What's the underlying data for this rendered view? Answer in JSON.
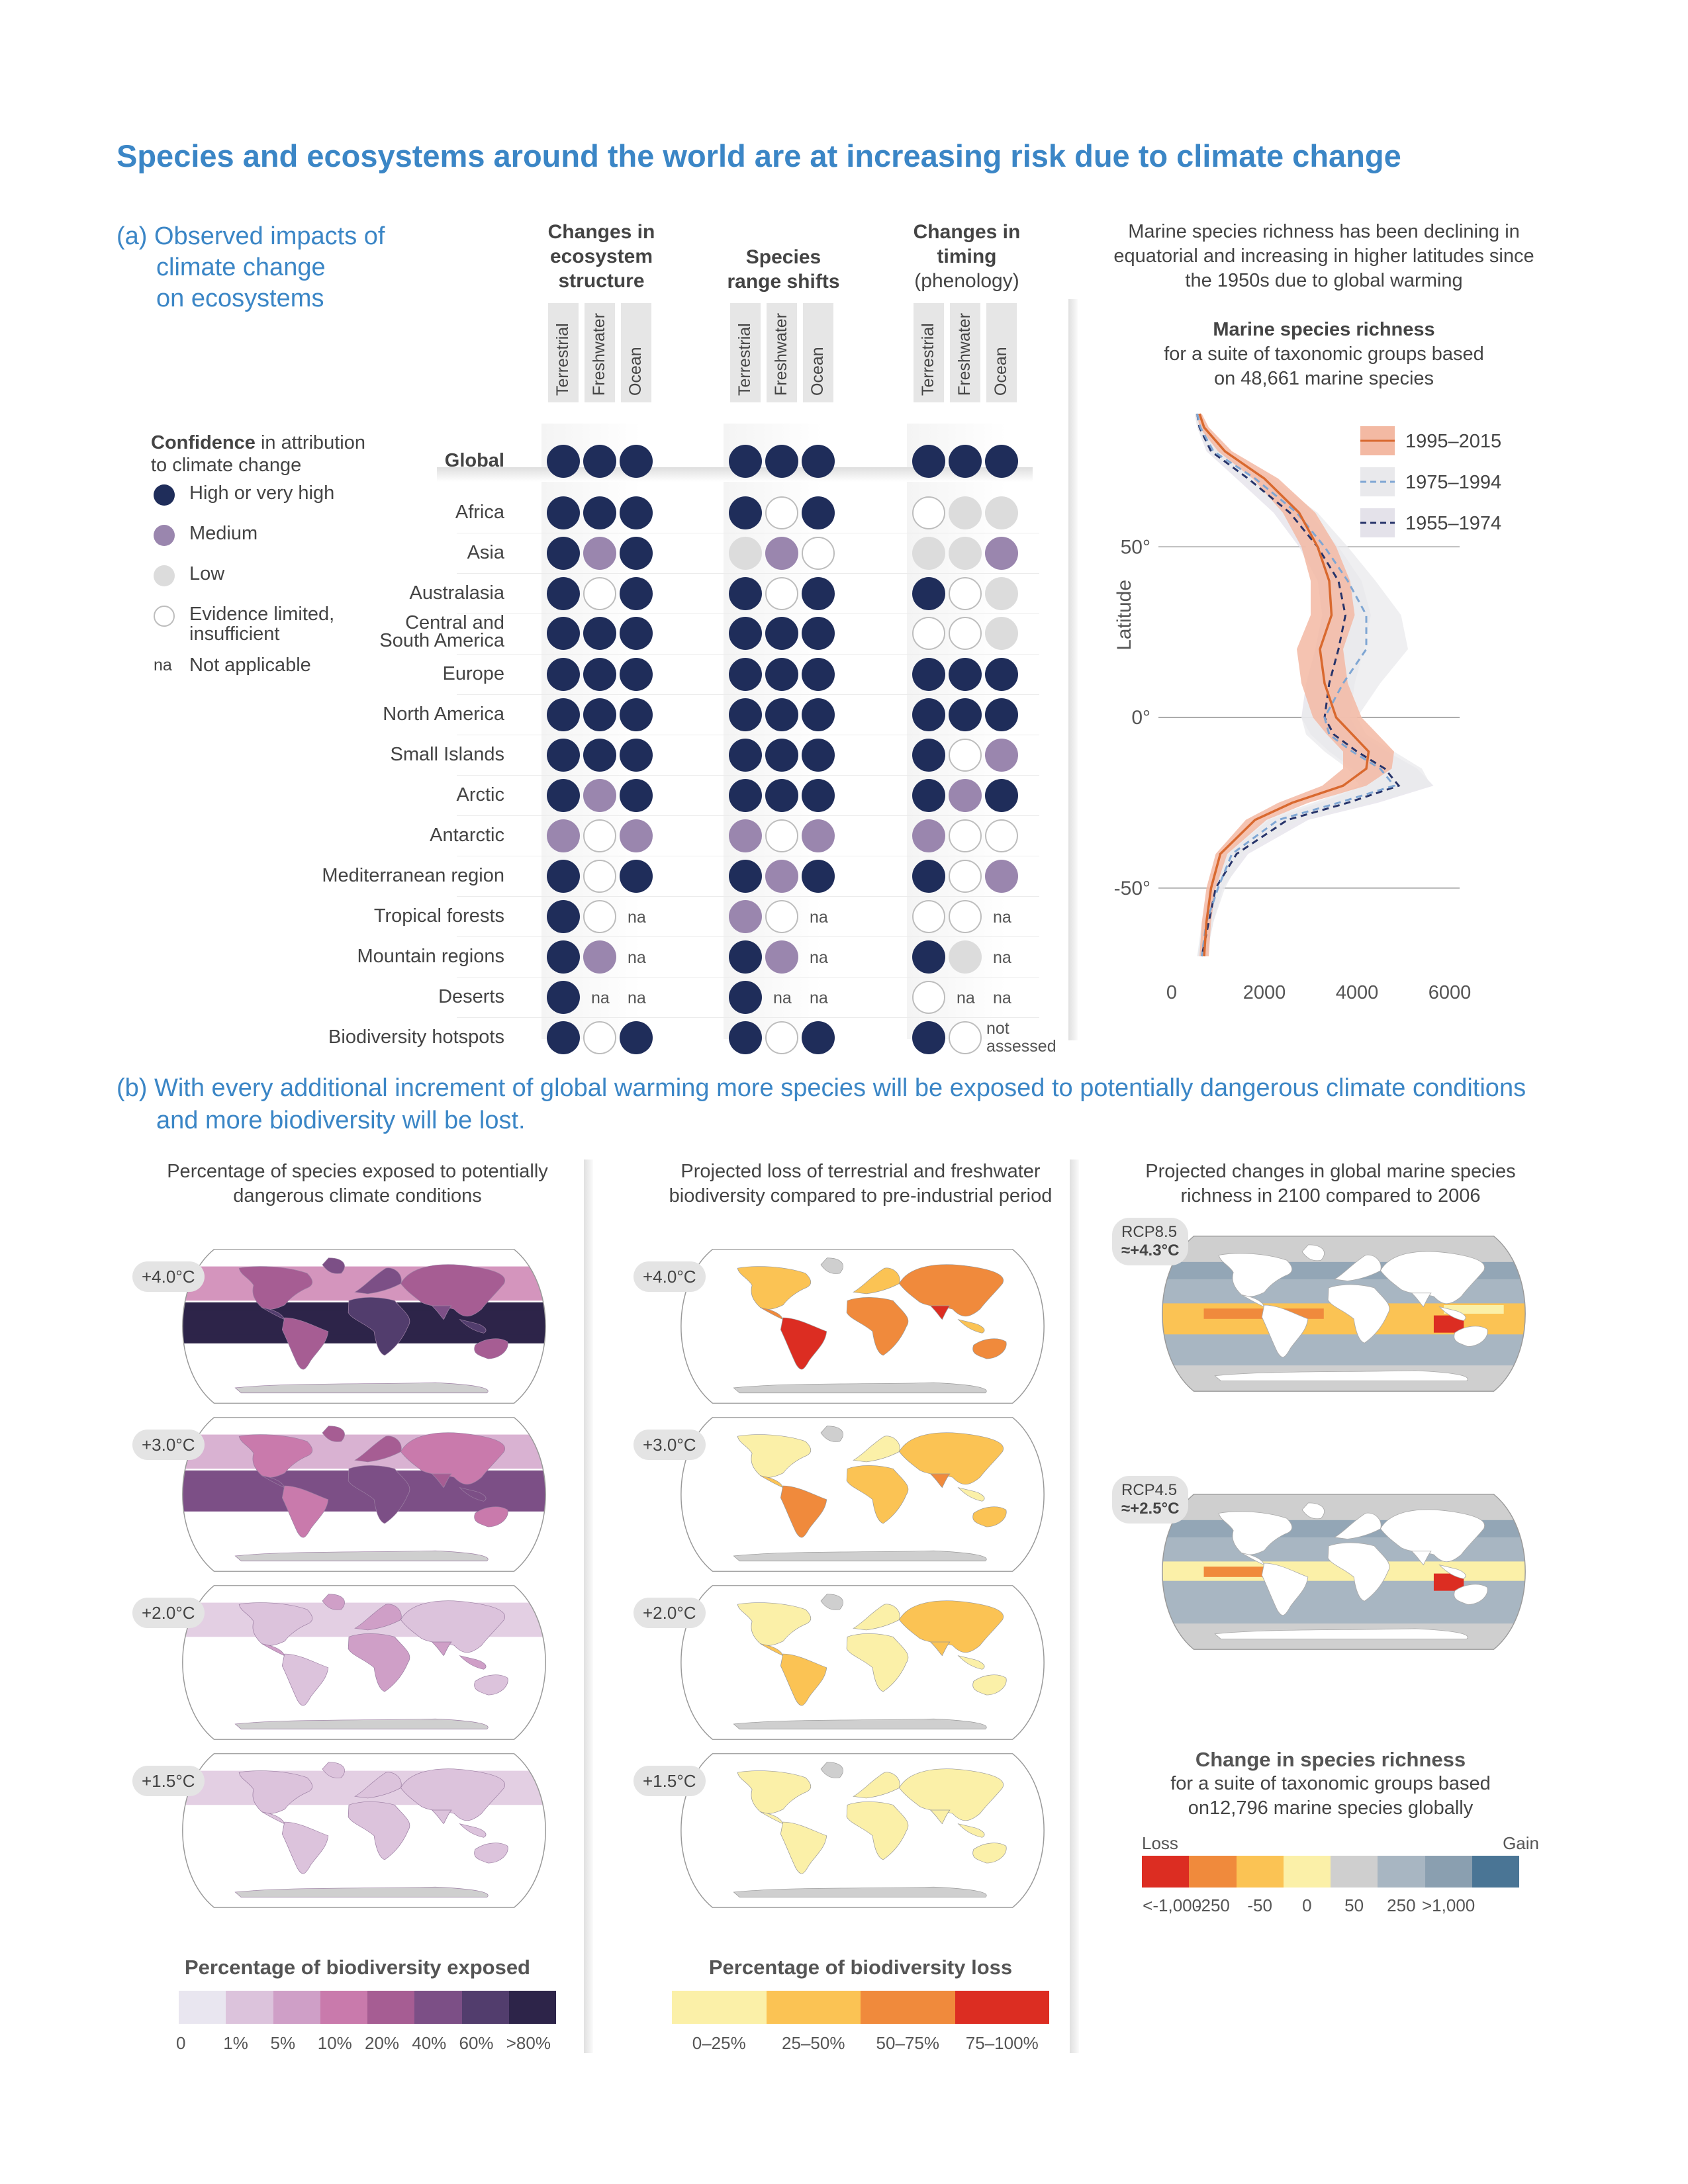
{
  "title": "Species and ecosystems around the world are at increasing risk due to climate change",
  "section_a": [
    "(a) Observed impacts of",
    "climate change",
    "on ecosystems"
  ],
  "section_b": [
    "(b) With every additional increment of global warming more species will be exposed to potentially dangerous climate conditions",
    "and more biodiversity will be lost."
  ],
  "matrix": {
    "groups": [
      {
        "lines": [
          "Changes in",
          "ecosystem",
          "structure"
        ],
        "bold": [
          true,
          true,
          true
        ]
      },
      {
        "lines": [
          "Species",
          "range shifts"
        ],
        "bold": [
          true,
          true
        ]
      },
      {
        "lines": [
          "Changes in",
          "timing",
          "(phenology)"
        ],
        "bold": [
          true,
          true,
          false
        ]
      }
    ],
    "sub_columns": [
      "Terrestrial",
      "Freshwater",
      "Ocean"
    ],
    "global_label": "Global",
    "rows": [
      "Africa",
      "Asia",
      "Australasia",
      "Central and\nSouth America",
      "Europe",
      "North America",
      "Small Islands",
      "Arctic",
      "Antarctic",
      "Mediterranean region",
      "Tropical forests",
      "Mountain regions",
      "Deserts",
      "Biodiversity hotspots"
    ],
    "values": {
      "Global": [
        "high",
        "high",
        "high",
        "high",
        "high",
        "high",
        "high",
        "high",
        "high"
      ],
      "Africa": [
        "high",
        "high",
        "high",
        "high",
        "limited",
        "high",
        "limited",
        "low",
        "low"
      ],
      "Asia": [
        "high",
        "medium",
        "high",
        "low",
        "medium",
        "limited",
        "low",
        "low",
        "medium"
      ],
      "Australasia": [
        "high",
        "limited",
        "high",
        "high",
        "limited",
        "high",
        "high",
        "limited",
        "low"
      ],
      "Central and\nSouth America": [
        "high",
        "high",
        "high",
        "high",
        "high",
        "high",
        "limited",
        "limited",
        "low"
      ],
      "Europe": [
        "high",
        "high",
        "high",
        "high",
        "high",
        "high",
        "high",
        "high",
        "high"
      ],
      "North America": [
        "high",
        "high",
        "high",
        "high",
        "high",
        "high",
        "high",
        "high",
        "high"
      ],
      "Small Islands": [
        "high",
        "high",
        "high",
        "high",
        "high",
        "high",
        "high",
        "limited",
        "medium"
      ],
      "Arctic": [
        "high",
        "medium",
        "high",
        "high",
        "high",
        "high",
        "high",
        "medium",
        "high"
      ],
      "Antarctic": [
        "medium",
        "limited",
        "medium",
        "medium",
        "limited",
        "medium",
        "medium",
        "limited",
        "limited"
      ],
      "Mediterranean region": [
        "high",
        "limited",
        "high",
        "high",
        "medium",
        "high",
        "high",
        "limited",
        "medium"
      ],
      "Tropical forests": [
        "high",
        "limited",
        "na",
        "medium",
        "limited",
        "na",
        "limited",
        "limited",
        "na"
      ],
      "Mountain regions": [
        "high",
        "medium",
        "na",
        "high",
        "medium",
        "na",
        "high",
        "low",
        "na"
      ],
      "Deserts": [
        "high",
        "na",
        "na",
        "high",
        "na",
        "na",
        "limited",
        "na",
        "na"
      ],
      "Biodiversity hotspots": [
        "high",
        "limited",
        "high",
        "high",
        "limited",
        "high",
        "high",
        "limited",
        "not_assessed"
      ]
    },
    "na_text": "na",
    "not_assessed_lines": [
      "not",
      "assessed"
    ]
  },
  "legend": {
    "title_bold": "Confidence",
    "title_rest": " in attribution",
    "title_line2": "to climate change",
    "items": [
      {
        "key": "high",
        "label": "High or very high",
        "color": "#1f2d5a"
      },
      {
        "key": "medium",
        "label": "Medium",
        "color": "#9a86ae"
      },
      {
        "key": "low",
        "label": "Low",
        "color": "#dcdcdc"
      },
      {
        "key": "limited",
        "label": "Evidence limited,\ninsufficient",
        "color": "#ffffff"
      }
    ],
    "na_key": "na",
    "na_label": "Not applicable"
  },
  "richness_note": [
    "Marine species richness has been declining in",
    "equatorial and increasing in higher latitudes since",
    "the 1950s due to global warming"
  ],
  "chart_data": {
    "type": "line",
    "title": "Marine species richness",
    "subtitle": [
      "for a suite of taxonomic groups based",
      "on 48,661 marine species"
    ],
    "ylabel": "Latitude",
    "xlabel": "",
    "xlim": [
      0,
      6000
    ],
    "ylim": [
      -70,
      90
    ],
    "x_ticks": [
      "0",
      "2000",
      "4000",
      "6000"
    ],
    "x_tick_values": [
      0,
      2000,
      4000,
      6000
    ],
    "y_ticks": [
      "50°",
      "0°",
      "-50°"
    ],
    "y_tick_values": [
      50,
      0,
      -50
    ],
    "grid": true,
    "legend_position": "top-right",
    "series": [
      {
        "name": "1995–2015",
        "color": "#d9692f",
        "dash": "solid",
        "band_color": "#f3b9a3",
        "lat": [
          89,
          85,
          78,
          70,
          60,
          50,
          40,
          30,
          20,
          10,
          0,
          -5,
          -10,
          -15,
          -20,
          -25,
          -30,
          -40,
          -50,
          -60,
          -70
        ],
        "x": [
          600,
          700,
          1150,
          2000,
          2750,
          3150,
          3400,
          3450,
          3200,
          3300,
          3550,
          3900,
          4250,
          4200,
          3700,
          2600,
          1800,
          1050,
          850,
          750,
          700
        ],
        "band_low": [
          550,
          600,
          1000,
          1750,
          2400,
          2800,
          3000,
          3000,
          2700,
          2800,
          3050,
          3350,
          3700,
          3700,
          3250,
          2300,
          1600,
          950,
          750,
          650,
          600
        ],
        "band_high": [
          650,
          800,
          1300,
          2300,
          3100,
          3550,
          3850,
          3950,
          3700,
          3800,
          4100,
          4450,
          4800,
          4750,
          4200,
          2950,
          2050,
          1200,
          950,
          850,
          800
        ]
      },
      {
        "name": "1975–1994",
        "color": "#7fa6d3",
        "dash": "dashed",
        "band_color": "#e9e9ec",
        "lat": [
          89,
          85,
          78,
          70,
          60,
          50,
          40,
          30,
          20,
          10,
          0,
          -5,
          -10,
          -15,
          -20,
          -25,
          -30,
          -40,
          -50,
          -60,
          -70
        ],
        "x": [
          550,
          620,
          900,
          1800,
          2700,
          3300,
          3800,
          4200,
          4200,
          3700,
          3300,
          3400,
          3900,
          4500,
          4800,
          3600,
          2300,
          1300,
          1000,
          750,
          650
        ],
        "band_low": [
          500,
          550,
          800,
          1550,
          2350,
          2900,
          3300,
          3600,
          3550,
          3100,
          2800,
          2900,
          3300,
          3800,
          4050,
          3050,
          1950,
          1100,
          850,
          650,
          550
        ],
        "band_high": [
          600,
          750,
          1100,
          2150,
          3150,
          3800,
          4400,
          4950,
          5100,
          4500,
          4000,
          4200,
          4800,
          5400,
          5600,
          4300,
          2750,
          1550,
          1150,
          900,
          750
        ]
      },
      {
        "name": "1955–1974",
        "color": "#27346a",
        "dash": "dashed",
        "band_color": "#e4e2ea",
        "lat": [
          89,
          85,
          78,
          70,
          60,
          50,
          40,
          30,
          20,
          10,
          0,
          -5,
          -10,
          -15,
          -20,
          -25,
          -30,
          -40,
          -50,
          -60,
          -70
        ],
        "x": [
          550,
          600,
          850,
          1650,
          2550,
          3150,
          3600,
          3750,
          3600,
          3400,
          3300,
          3500,
          4000,
          4600,
          4900,
          3800,
          2500,
          1400,
          950,
          800,
          650
        ],
        "band_low": [
          500,
          550,
          750,
          1400,
          2200,
          2750,
          3150,
          3250,
          3100,
          2900,
          2800,
          3000,
          3400,
          3900,
          4150,
          3200,
          2100,
          1200,
          800,
          700,
          550
        ],
        "band_high": [
          600,
          700,
          1000,
          1950,
          2950,
          3600,
          4100,
          4300,
          4150,
          3950,
          3850,
          4050,
          4650,
          5300,
          5650,
          4450,
          2950,
          1650,
          1100,
          900,
          750
        ]
      }
    ]
  },
  "panel_b": {
    "exposed": {
      "caption": [
        "Percentage of species exposed to potentially",
        "dangerous climate conditions"
      ],
      "levels": [
        "+4.0°C",
        "+3.0°C",
        "+2.0°C",
        "+1.5°C"
      ],
      "intensity": [
        1.0,
        0.72,
        0.32,
        0.16
      ],
      "colorbar_title": "Percentage of biodiversity exposed",
      "colorbar_colors": [
        "#e9e6f0",
        "#dcc3dc",
        "#cf9fc7",
        "#c97aac",
        "#a65d93",
        "#7c4f86",
        "#523d6d",
        "#2d2449"
      ],
      "colorbar_ticks": [
        "0",
        "1%",
        "5%",
        "10%",
        "20%",
        "40%",
        "60%",
        ">80%"
      ]
    },
    "loss": {
      "caption": [
        "Projected loss of terrestrial and freshwater",
        "biodiversity compared to pre-industrial period"
      ],
      "levels": [
        "+4.0°C",
        "+3.0°C",
        "+2.0°C",
        "+1.5°C"
      ],
      "intensity": [
        1.0,
        0.7,
        0.4,
        0.22
      ],
      "colorbar_title": "Percentage of biodiversity loss",
      "colorbar_colors": [
        "#fbf0a8",
        "#fbc354",
        "#f08a3c",
        "#dc2d22"
      ],
      "colorbar_ticks": [
        "0–25%",
        "25–50%",
        "50–75%",
        "75–100%"
      ]
    },
    "marine": {
      "caption": [
        "Projected changes in global marine species",
        "richness in 2100 compared to 2006"
      ],
      "scenarios": [
        {
          "name": "RCP8.5",
          "temp": "≈+4.3°C",
          "intensity": 1.0
        },
        {
          "name": "RCP4.5",
          "temp": "≈+2.5°C",
          "intensity": 0.55
        }
      ],
      "colorbar_title": "Change in species richness",
      "colorbar_subtitle": [
        "for a suite of taxonomic groups based",
        "on12,796 marine species globally"
      ],
      "loss_label": "Loss",
      "gain_label": "Gain",
      "colorbar_colors": [
        "#dc2d22",
        "#f08a3c",
        "#fbc354",
        "#fbf0a8",
        "#cfcfcf",
        "#a8b6c2",
        "#8a9fb0",
        "#4a7595"
      ],
      "colorbar_ticks": [
        "<-1,000",
        "-250",
        "-50",
        "0",
        "50",
        "250",
        ">1,000"
      ]
    }
  }
}
